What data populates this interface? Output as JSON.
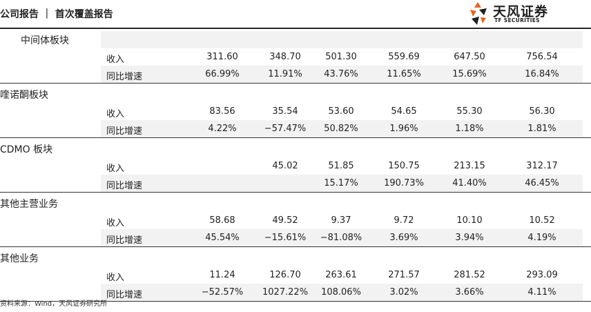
{
  "header": {
    "title": "公司报告 ｜ 首次覆盖报告"
  },
  "logo": {
    "cn": "天风证券",
    "en": "TF SECURITIES",
    "colors": {
      "orange": "#e8641f",
      "dark": "#1f1f1f"
    }
  },
  "sections": [
    {
      "name": "中间体板块",
      "rows": [
        {
          "label": "收入",
          "values": [
            "311.60",
            "348.70",
            "501.30",
            "559.69",
            "647.50",
            "756.54"
          ]
        },
        {
          "label": "同比增速",
          "values": [
            "66.99%",
            "11.91%",
            "43.76%",
            "11.65%",
            "15.69%",
            "16.84%"
          ]
        }
      ]
    },
    {
      "name": "喹诺酮板块",
      "rows": [
        {
          "label": "收入",
          "values": [
            "83.56",
            "35.54",
            "53.60",
            "54.65",
            "55.30",
            "56.30"
          ]
        },
        {
          "label": "同比增速",
          "values": [
            "4.22%",
            "−57.47%",
            "50.82%",
            "1.96%",
            "1.18%",
            "1.81%"
          ]
        }
      ]
    },
    {
      "name": "CDMO 板块",
      "rows": [
        {
          "label": "收入",
          "values": [
            "",
            "45.02",
            "51.85",
            "150.75",
            "213.15",
            "312.17"
          ]
        },
        {
          "label": "同比增速",
          "values": [
            "",
            "",
            "15.17%",
            "190.73%",
            "41.40%",
            "46.45%"
          ]
        }
      ]
    },
    {
      "name": "其他主营业务",
      "rows": [
        {
          "label": "收入",
          "values": [
            "58.68",
            "49.52",
            "9.37",
            "9.72",
            "10.10",
            "10.52"
          ]
        },
        {
          "label": "同比增速",
          "values": [
            "45.54%",
            "−15.61%",
            "−81.08%",
            "3.69%",
            "3.94%",
            "4.19%"
          ]
        }
      ]
    },
    {
      "name": "其他业务",
      "rows": [
        {
          "label": "收入",
          "values": [
            "11.24",
            "126.70",
            "263.61",
            "271.57",
            "281.52",
            "293.09"
          ]
        },
        {
          "label": "同比增速",
          "values": [
            "−52.57%",
            "1027.22%",
            "108.06%",
            "3.02%",
            "3.66%",
            "4.11%"
          ]
        }
      ]
    }
  ],
  "footnote": "资料来源：Wind，天风证券研究所"
}
